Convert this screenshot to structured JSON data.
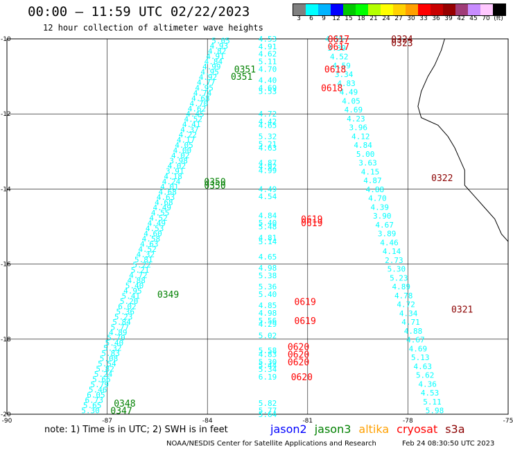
{
  "header": {
    "title": "00:00 – 11:59 UTC 02/22/2023",
    "subtitle": "12 hour collection of altimeter wave heights"
  },
  "color_scale": {
    "unit_label": "(ft)",
    "bins": [
      {
        "label": "3",
        "color": "#808080"
      },
      {
        "label": "6",
        "color": "#00ffff"
      },
      {
        "label": "9",
        "color": "#00b4ff"
      },
      {
        "label": "12",
        "color": "#0000ff"
      },
      {
        "label": "15",
        "color": "#00c800"
      },
      {
        "label": "18",
        "color": "#00ff00"
      },
      {
        "label": "21",
        "color": "#b4ff00"
      },
      {
        "label": "24",
        "color": "#ffff00"
      },
      {
        "label": "27",
        "color": "#ffd200"
      },
      {
        "label": "30",
        "color": "#ffa000"
      },
      {
        "label": "33",
        "color": "#ff0000"
      },
      {
        "label": "36",
        "color": "#c80000"
      },
      {
        "label": "39",
        "color": "#960000"
      },
      {
        "label": "42",
        "color": "#a03c78"
      },
      {
        "label": "45",
        "color": "#c88cff"
      },
      {
        "label": "70",
        "color": "#ffc8ff"
      },
      {
        "label": "",
        "color": "#000000"
      }
    ]
  },
  "map": {
    "lon_range": [
      -90,
      -75
    ],
    "lat_range": [
      -20,
      -10
    ],
    "lon_ticks": [
      "-90",
      "-87",
      "-84",
      "-81",
      "-78",
      "-75"
    ],
    "lat_ticks": [
      "-10",
      "-12",
      "-14",
      "-16",
      "-18",
      "-20"
    ],
    "grid": true,
    "coastline": [
      [
        -76.9,
        -10
      ],
      [
        -77.0,
        -10.3
      ],
      [
        -77.2,
        -10.7
      ],
      [
        -77.4,
        -11.0
      ],
      [
        -77.6,
        -11.4
      ],
      [
        -77.7,
        -11.8
      ],
      [
        -77.6,
        -12.1
      ],
      [
        -77.1,
        -12.3
      ],
      [
        -76.8,
        -12.6
      ],
      [
        -76.6,
        -12.9
      ],
      [
        -76.5,
        -13.1
      ],
      [
        -76.3,
        -13.5
      ],
      [
        -76.3,
        -13.9
      ],
      [
        -76.0,
        -14.2
      ],
      [
        -75.7,
        -14.5
      ],
      [
        -75.4,
        -14.8
      ],
      [
        -75.2,
        -15.2
      ],
      [
        -75.0,
        -15.4
      ]
    ]
  },
  "tracks": [
    {
      "satellite": "jason2",
      "color": "#00ffff",
      "values": [
        "5.05",
        "4.93",
        "4.82",
        "4.91",
        "4.84",
        "4.99",
        "4.95",
        "4.92",
        "4.77",
        "4.95",
        "4.74",
        "4.68",
        "4.70",
        "4.62",
        "4.45",
        "4.52",
        "4.41",
        "4.37",
        "4.22",
        "4.17",
        "4.05",
        "4.00",
        "4.02",
        "3.98",
        "4.02",
        "3.91",
        "4.18",
        "4.24",
        "4.01",
        "4.68",
        "4.63",
        "4.68",
        "4.49",
        "4.55",
        "4.52",
        "4.49",
        "4.53",
        "4.60",
        "4.58",
        "4.63",
        "4.52",
        "4.32",
        "5.81",
        "5.22",
        "5.21",
        "4.72",
        "4.88",
        "5.40",
        "4.95",
        "5.41",
        "5.20",
        "6.02",
        "5.36",
        "5.23",
        "5.84",
        "5.77",
        "4.89",
        "5.70",
        "5.40",
        "5.32",
        "5.83",
        "5.08",
        "5.54",
        "5.82",
        "5.24",
        "5.66",
        "5.79",
        "5.46",
        "6.05",
        "6.73",
        "5.65",
        "5.30"
      ],
      "lat_start": -10.05,
      "lat_end": -19.9,
      "lon_start": -83.6,
      "lon_end": -87.5
    },
    {
      "satellite": "jason2",
      "color": "#00ffff",
      "values": [
        "4.53",
        "4.91",
        "4.62",
        "5.11",
        "4.70",
        "4.40",
        "4.69",
        "5.53",
        "4.72",
        "4.42",
        "4.65",
        "5.32",
        "5.21",
        "4.63",
        "4.87",
        "4.92",
        "4.99",
        "4.49",
        "4.54",
        "4.84",
        "5.40",
        "5.48",
        "4.81",
        "5.14",
        "4.65",
        "4.98",
        "5.38",
        "5.36",
        "5.40",
        "4.85",
        "4.98",
        "5.56",
        "4.29",
        "5.02",
        "5.58",
        "4.83",
        "5.30",
        "5.44",
        "5.34",
        "6.19",
        "5.82",
        "5.77",
        "5.64"
      ],
      "lats": [
        -10.0,
        -10.2,
        -10.4,
        -10.6,
        -10.8,
        -11.1,
        -11.3,
        -11.4,
        -12.0,
        -12.2,
        -12.3,
        -12.6,
        -12.8,
        -12.9,
        -13.3,
        -13.4,
        -13.5,
        -14.0,
        -14.2,
        -14.7,
        -14.9,
        -15.0,
        -15.3,
        -15.4,
        -15.8,
        -16.1,
        -16.3,
        -16.6,
        -16.8,
        -17.1,
        -17.3,
        -17.5,
        -17.6,
        -17.9,
        -18.3,
        -18.4,
        -18.6,
        -18.7,
        -18.8,
        -19.0,
        -19.7,
        -19.9,
        -20.0
      ],
      "lon": -82.2
    },
    {
      "satellite": "jason2",
      "color": "#00ffff",
      "values": [
        "4.15",
        "3.39",
        "4.52",
        "4.59",
        "3.34",
        "4.83",
        "4.49",
        "4.05",
        "4.69",
        "4.23",
        "3.96",
        "4.12",
        "4.84",
        "5.00",
        "3.63",
        "4.15",
        "4.87",
        "4.88",
        "4.70",
        "4.39",
        "3.90",
        "4.67",
        "3.89",
        "4.46",
        "4.14",
        "2.73",
        "5.30",
        "5.23",
        "4.89",
        "4.78",
        "4.72",
        "4.34",
        "4.71",
        "4.88",
        "4.67",
        "4.69",
        "5.13",
        "4.63",
        "5.62",
        "4.36",
        "4.53",
        "5.11",
        "5.98"
      ],
      "lat_start": -10.0,
      "lat_end": -19.9,
      "lon_start": -80.2,
      "lon_end": -77.2
    }
  ],
  "time_labels": [
    {
      "text": "0617",
      "color": "#ff0000",
      "lat": -10.0,
      "lon": -80.4
    },
    {
      "text": "0617",
      "color": "#ff0000",
      "lat": -10.2,
      "lon": -80.4
    },
    {
      "text": "0618",
      "color": "#ff0000",
      "lat": -10.8,
      "lon": -80.5
    },
    {
      "text": "0618",
      "color": "#ff0000",
      "lat": -11.3,
      "lon": -80.6
    },
    {
      "text": "0351",
      "color": "#008000",
      "lat": -10.8,
      "lon": -83.2
    },
    {
      "text": "0351",
      "color": "#008000",
      "lat": -11.0,
      "lon": -83.3
    },
    {
      "text": "0350",
      "color": "#008000",
      "lat": -13.8,
      "lon": -84.1
    },
    {
      "text": "0350",
      "color": "#008000",
      "lat": -13.9,
      "lon": -84.1
    },
    {
      "text": "0619",
      "color": "#ff0000",
      "lat": -14.8,
      "lon": -81.2
    },
    {
      "text": "0619",
      "color": "#ff0000",
      "lat": -14.9,
      "lon": -81.2
    },
    {
      "text": "0619",
      "color": "#ff0000",
      "lat": -17.0,
      "lon": -81.4
    },
    {
      "text": "0619",
      "color": "#ff0000",
      "lat": -17.5,
      "lon": -81.4
    },
    {
      "text": "0349",
      "color": "#008000",
      "lat": -16.8,
      "lon": -85.5
    },
    {
      "text": "0620",
      "color": "#ff0000",
      "lat": -18.2,
      "lon": -81.6
    },
    {
      "text": "0620",
      "color": "#ff0000",
      "lat": -18.4,
      "lon": -81.6
    },
    {
      "text": "0620",
      "color": "#ff0000",
      "lat": -18.6,
      "lon": -81.6
    },
    {
      "text": "0620",
      "color": "#ff0000",
      "lat": -19.0,
      "lon": -81.5
    },
    {
      "text": "0348",
      "color": "#008000",
      "lat": -19.7,
      "lon": -86.8
    },
    {
      "text": "0347",
      "color": "#008000",
      "lat": -19.9,
      "lon": -86.9
    },
    {
      "text": "0324",
      "color": "#8b0000",
      "lat": -10.0,
      "lon": -78.5
    },
    {
      "text": "0323",
      "color": "#8b0000",
      "lat": -10.1,
      "lon": -78.5
    },
    {
      "text": "0322",
      "color": "#8b0000",
      "lat": -13.7,
      "lon": -77.3
    },
    {
      "text": "0321",
      "color": "#8b0000",
      "lat": -17.2,
      "lon": -76.7
    }
  ],
  "footer": {
    "note": "note:  1) Time is in UTC;  2) SWH is in feet",
    "satellites": [
      {
        "name": "jason2",
        "color": "#0000ff"
      },
      {
        "name": "jason3",
        "color": "#008000"
      },
      {
        "name": "altika",
        "color": "#ffa000"
      },
      {
        "name": "cryosat",
        "color": "#ff0000"
      },
      {
        "name": "s3a",
        "color": "#8b0000"
      }
    ],
    "credit": "NOAA/NESDIS Center for Satellite Applications and Research",
    "timestamp": "Feb 24 08:30:50 UTC 2023"
  }
}
